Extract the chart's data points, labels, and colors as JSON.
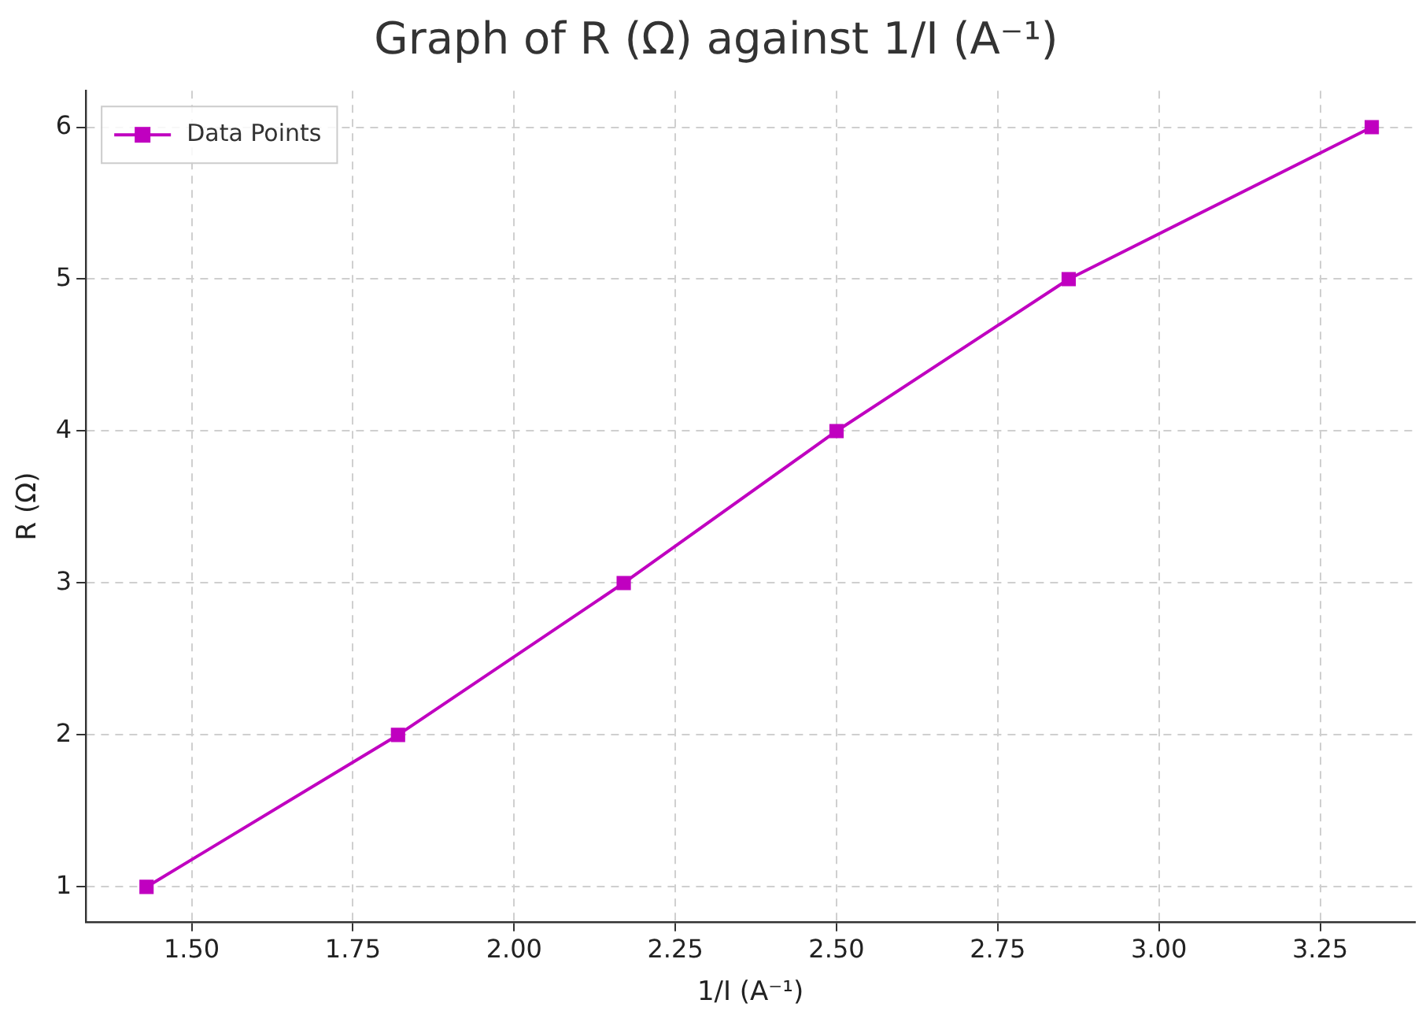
{
  "chart_data": {
    "type": "line",
    "title": "Graph of R (Ω) against 1/I (A⁻¹)",
    "xlabel": "1/I (A⁻¹)",
    "ylabel": "R (Ω)",
    "x": [
      1.43,
      1.82,
      2.17,
      2.5,
      2.86,
      3.33
    ],
    "series": [
      {
        "name": "Data Points",
        "color": "#c000c0",
        "values": [
          1,
          2,
          3,
          4,
          5,
          6
        ]
      }
    ],
    "xlim": [
      1.336,
      3.397
    ],
    "ylim": [
      0.77,
      6.24
    ],
    "xticks": [
      {
        "value": 1.5,
        "label": "1.50"
      },
      {
        "value": 1.75,
        "label": "1.75"
      },
      {
        "value": 2,
        "label": "2.00"
      },
      {
        "value": 2.25,
        "label": "2.25"
      },
      {
        "value": 2.5,
        "label": "2.50"
      },
      {
        "value": 2.75,
        "label": "2.75"
      },
      {
        "value": 3,
        "label": "3.00"
      },
      {
        "value": 3.25,
        "label": "3.25"
      }
    ],
    "yticks": [
      1,
      2,
      3,
      4,
      5,
      6
    ],
    "grid": true,
    "legend": "top left",
    "marker": "square",
    "line_style": "solid"
  }
}
